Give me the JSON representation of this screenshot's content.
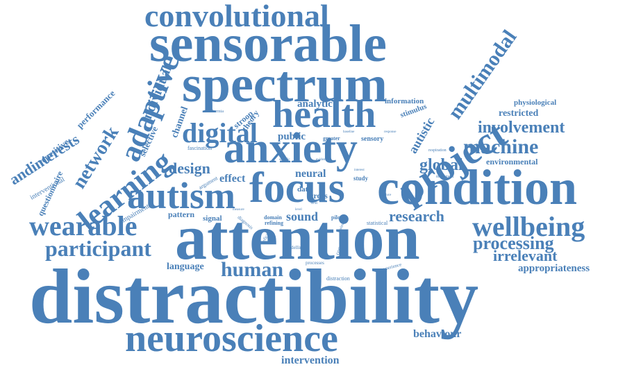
{
  "color": "#4a80b8",
  "words": [
    "distractibility",
    "attention",
    "sensorable",
    "spectrum",
    "condition",
    "focus",
    "anxiety",
    "neuroscience",
    "health",
    "autism",
    "convolutional",
    "project",
    "wearable",
    "wellbeing",
    "learning",
    "adaptive",
    "digital",
    "participant",
    "multimodal",
    "human",
    "machine",
    "processing",
    "network",
    "involvement",
    "research",
    "global",
    "design",
    "andinterests",
    "irrelevant",
    "individual",
    "intervention",
    "behaviour",
    "sound",
    "effect",
    "public",
    "analytic",
    "appropriateness",
    "restricted",
    "autistic",
    "language",
    "channel",
    "environmental",
    "neural",
    "cross",
    "performance",
    "repetitive",
    "questionnaire",
    "interventional",
    "selective",
    "stroop",
    "theory",
    "pattern",
    "physiological",
    "information",
    "stimulus",
    "data",
    "signal",
    "impairment",
    "fascination",
    "argument",
    "sensory",
    "greater",
    "domain",
    "refining",
    "pilot",
    "study",
    "statistical",
    "cognitive",
    "distraction",
    "processes",
    "experience",
    "modelling",
    "deficit",
    "diagnosis",
    "euthermia",
    "movement",
    "respiration",
    "evident",
    "specific",
    "baseline",
    "response",
    "measure",
    "text",
    "level",
    "target",
    "visual",
    "reduce",
    "interest"
  ]
}
